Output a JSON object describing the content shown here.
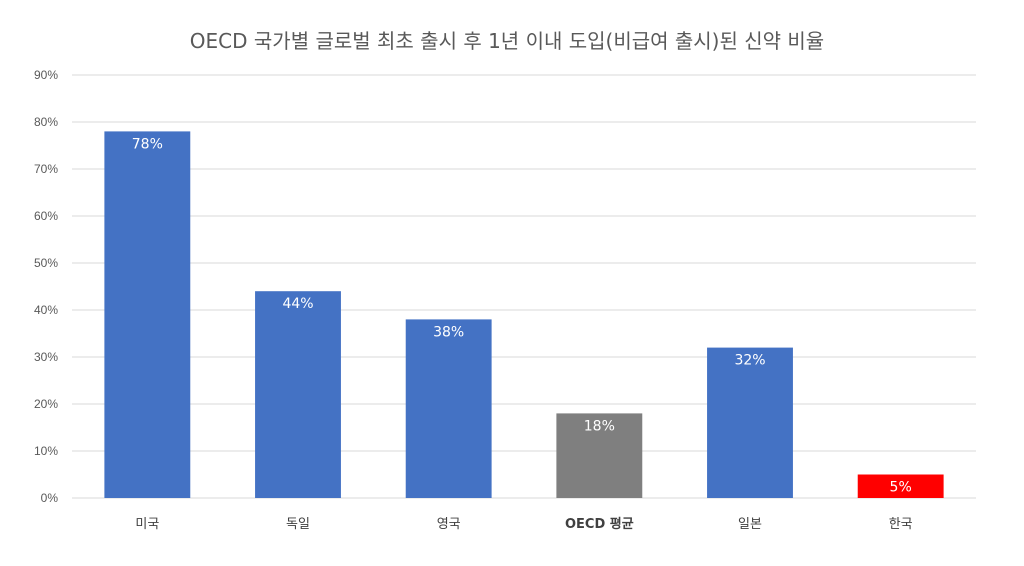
{
  "chart_data": {
    "type": "bar",
    "title": "OECD 국가별 글로벌 최초 출시 후 1년 이내 도입(비급여 출시)된 신약 비율",
    "categories": [
      "미국",
      "독일",
      "영국",
      "OECD 평균",
      "일본",
      "한국"
    ],
    "values": [
      78,
      44,
      38,
      18,
      32,
      5
    ],
    "data_labels": [
      "78%",
      "44%",
      "38%",
      "18%",
      "32%",
      "5%"
    ],
    "bar_colors": [
      "#4472C4",
      "#4472C4",
      "#4472C4",
      "#7F7F7F",
      "#4472C4",
      "#FF0000"
    ],
    "bold_categories": [
      "OECD 평균"
    ],
    "ylim": [
      0,
      90
    ],
    "y_ticks": [
      "0%",
      "10%",
      "20%",
      "30%",
      "40%",
      "50%",
      "60%",
      "70%",
      "80%",
      "90%"
    ],
    "xlabel": "",
    "ylabel": "",
    "grid": true,
    "legend": "none"
  }
}
